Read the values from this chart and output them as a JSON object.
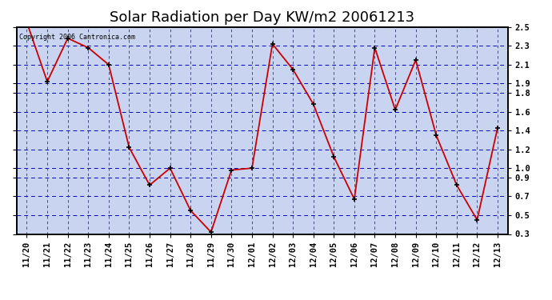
{
  "title": "Solar Radiation per Day KW/m2 20061213",
  "copyright_text": "Copyright 2006 Cantronica.com",
  "labels": [
    "11/20",
    "11/21",
    "11/22",
    "11/23",
    "11/24",
    "11/25",
    "11/26",
    "11/27",
    "11/28",
    "11/29",
    "11/30",
    "12/01",
    "12/02",
    "12/03",
    "12/04",
    "12/05",
    "12/06",
    "12/07",
    "12/08",
    "12/09",
    "12/10",
    "12/11",
    "12/12",
    "12/13"
  ],
  "values": [
    2.55,
    1.92,
    2.38,
    2.28,
    2.1,
    1.22,
    0.82,
    1.0,
    0.55,
    0.32,
    0.98,
    1.0,
    2.32,
    2.05,
    1.68,
    1.12,
    0.67,
    2.28,
    1.62,
    2.15,
    1.35,
    0.82,
    0.45,
    1.43
  ],
  "line_color": "#cc0000",
  "marker_color": "#000000",
  "fig_bg_color": "#ffffff",
  "plot_bg_color": "#c8d4f0",
  "grid_color_h": "#0000bb",
  "grid_color_v": "#333366",
  "ylim": [
    0.3,
    2.5
  ],
  "yticks": [
    2.5,
    2.3,
    2.1,
    1.9,
    1.8,
    1.6,
    1.4,
    1.2,
    1.0,
    0.9,
    0.7,
    0.5,
    0.3
  ],
  "title_fontsize": 13,
  "tick_fontsize": 7.5
}
